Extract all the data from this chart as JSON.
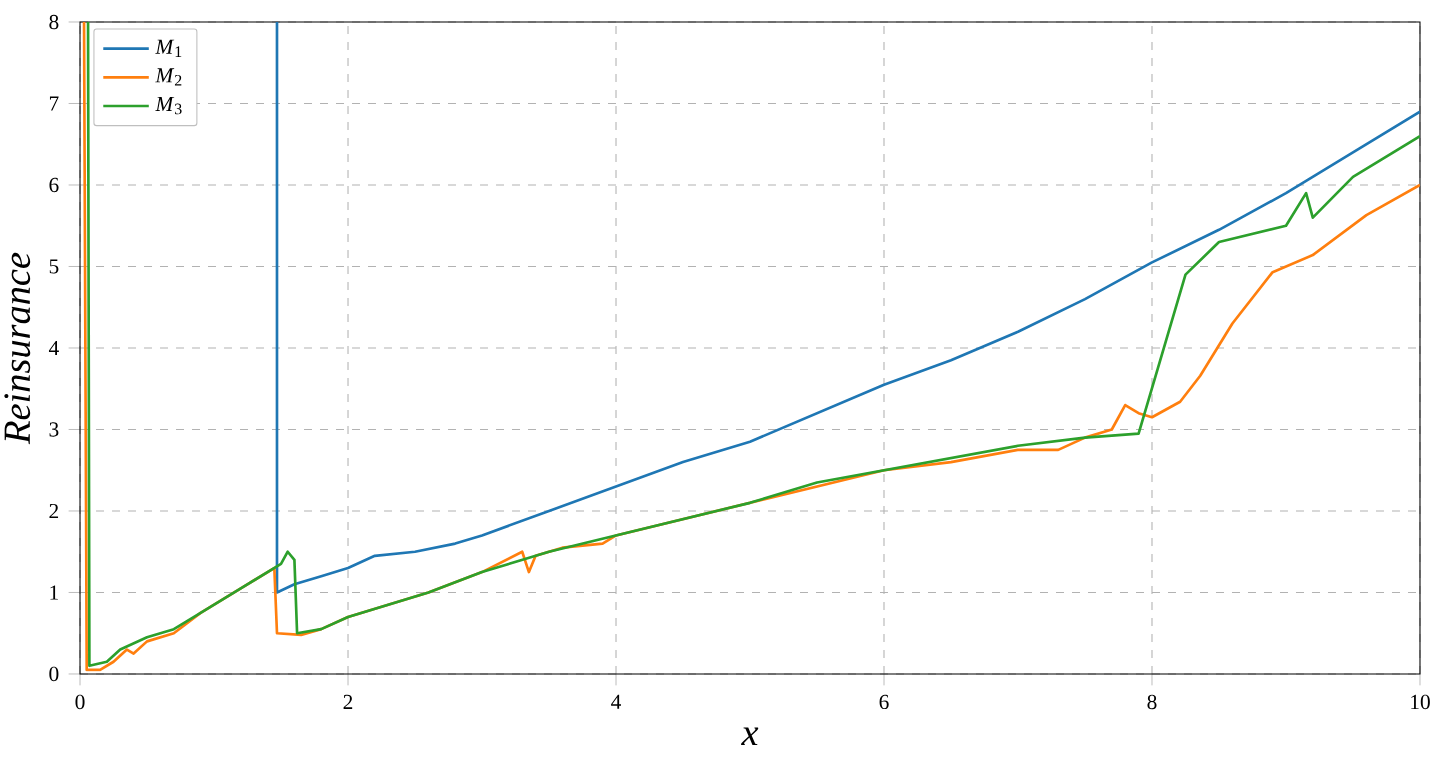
{
  "chart_data": {
    "type": "line",
    "xlabel": "*x*",
    "ylabel": "*Reinsurance*",
    "xlim": [
      0,
      10
    ],
    "ylim": [
      0,
      8
    ],
    "xticks": [
      0,
      2,
      4,
      6,
      8,
      10
    ],
    "yticks": [
      0,
      1,
      2,
      3,
      4,
      5,
      6,
      7,
      8
    ],
    "grid": true,
    "legend": "top left",
    "marker": "none",
    "line_style": "solid",
    "series": [
      {
        "name": "*M*$_{1}$",
        "color": "#1f77b4",
        "x": [
          1.47,
          1.47,
          1.6,
          1.8,
          2.0,
          2.2,
          2.5,
          2.8,
          3.0,
          3.5,
          4.0,
          4.5,
          5.0,
          5.5,
          6.0,
          6.5,
          7.0,
          7.5,
          8.0,
          8.5,
          9.0,
          9.5,
          10.0
        ],
        "values": [
          8,
          1.0,
          1.1,
          1.2,
          1.3,
          1.45,
          1.5,
          1.6,
          1.7,
          2.0,
          2.3,
          2.6,
          2.85,
          3.2,
          3.55,
          3.85,
          4.2,
          4.6,
          5.05,
          5.45,
          5.9,
          6.4,
          6.9
        ]
      },
      {
        "name": "*M*$_{2}$",
        "color": "#ff7f0e",
        "x": [
          0.03,
          0.05,
          0.15,
          0.25,
          0.35,
          0.4,
          0.5,
          0.7,
          0.9,
          1.2,
          1.45,
          1.47,
          1.65,
          1.8,
          2.0,
          2.3,
          2.6,
          3.0,
          3.3,
          3.35,
          3.4,
          3.6,
          3.9,
          4.0,
          4.5,
          5.0,
          5.5,
          6.0,
          6.5,
          7.0,
          7.3,
          7.5,
          7.7,
          7.8,
          7.9,
          8.0,
          8.21,
          8.36,
          8.6,
          8.9,
          9.2,
          9.6,
          10.0
        ],
        "values": [
          8,
          0.05,
          0.05,
          0.15,
          0.3,
          0.25,
          0.4,
          0.5,
          0.75,
          1.05,
          1.3,
          0.5,
          0.48,
          0.55,
          0.7,
          0.85,
          1.0,
          1.25,
          1.5,
          1.25,
          1.45,
          1.55,
          1.6,
          1.7,
          1.9,
          2.1,
          2.3,
          2.5,
          2.6,
          2.75,
          2.75,
          2.9,
          3.0,
          3.3,
          3.2,
          3.15,
          3.34,
          3.66,
          4.3,
          4.93,
          5.14,
          5.63,
          6.0
        ]
      },
      {
        "name": "*M*$_{3}$",
        "color": "#2ca02c",
        "x": [
          0.06,
          0.07,
          0.2,
          0.3,
          0.5,
          0.7,
          0.9,
          1.2,
          1.5,
          1.55,
          1.6,
          1.62,
          1.8,
          2.0,
          2.3,
          2.6,
          3.0,
          3.5,
          4.0,
          4.5,
          5.0,
          5.5,
          6.0,
          6.5,
          7.0,
          7.5,
          7.9,
          8.25,
          8.5,
          9.0,
          9.15,
          9.2,
          9.5,
          10.0
        ],
        "values": [
          8,
          0.1,
          0.15,
          0.3,
          0.45,
          0.55,
          0.75,
          1.05,
          1.35,
          1.5,
          1.4,
          0.5,
          0.55,
          0.7,
          0.85,
          1.0,
          1.25,
          1.5,
          1.7,
          1.9,
          2.1,
          2.35,
          2.5,
          2.65,
          2.8,
          2.9,
          2.95,
          4.9,
          5.3,
          5.5,
          5.9,
          5.6,
          6.1,
          6.6
        ]
      }
    ]
  }
}
